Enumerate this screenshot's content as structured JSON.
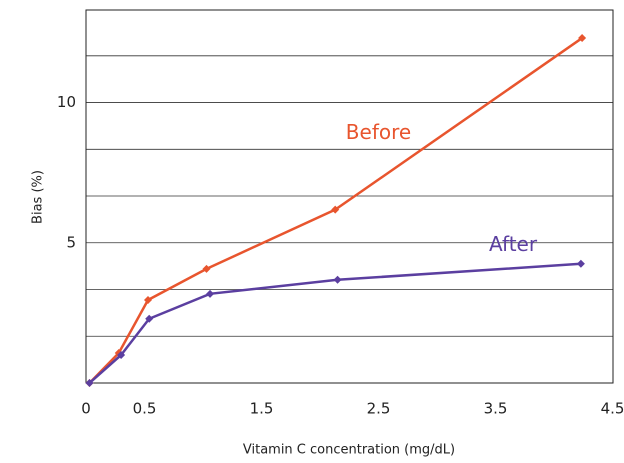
{
  "chart_data": {
    "type": "line",
    "x_label": "Vitamin C concentration (mg/dL)",
    "y_label": "Bias (%)",
    "xlim": [
      0,
      4.5
    ],
    "xticks": [
      0,
      0.5,
      1.5,
      2.5,
      3.5,
      4.5
    ],
    "ylim": [
      0,
      13.3
    ],
    "yticks": [
      5,
      10
    ],
    "grid_lines": [
      1.667,
      3.333,
      5,
      6.667,
      8.333,
      10,
      11.667
    ],
    "series": [
      {
        "name": "Before",
        "color": "#e8552e",
        "x": [
          0.03,
          0.28,
          0.53,
          1.03,
          2.13,
          4.24
        ],
        "values": [
          0,
          1.07,
          2.96,
          4.07,
          6.18,
          12.3
        ]
      },
      {
        "name": "After",
        "color": "#5b3fa0",
        "x": [
          0.03,
          0.3,
          0.54,
          1.06,
          2.15,
          4.23
        ],
        "values": [
          0,
          1.0,
          2.29,
          3.18,
          3.68,
          4.25
        ]
      }
    ],
    "annotations": [
      {
        "text": "Before",
        "x": 2.5,
        "y": 8.9
      },
      {
        "text": "After",
        "x": 3.65,
        "y": 4.9
      }
    ]
  }
}
